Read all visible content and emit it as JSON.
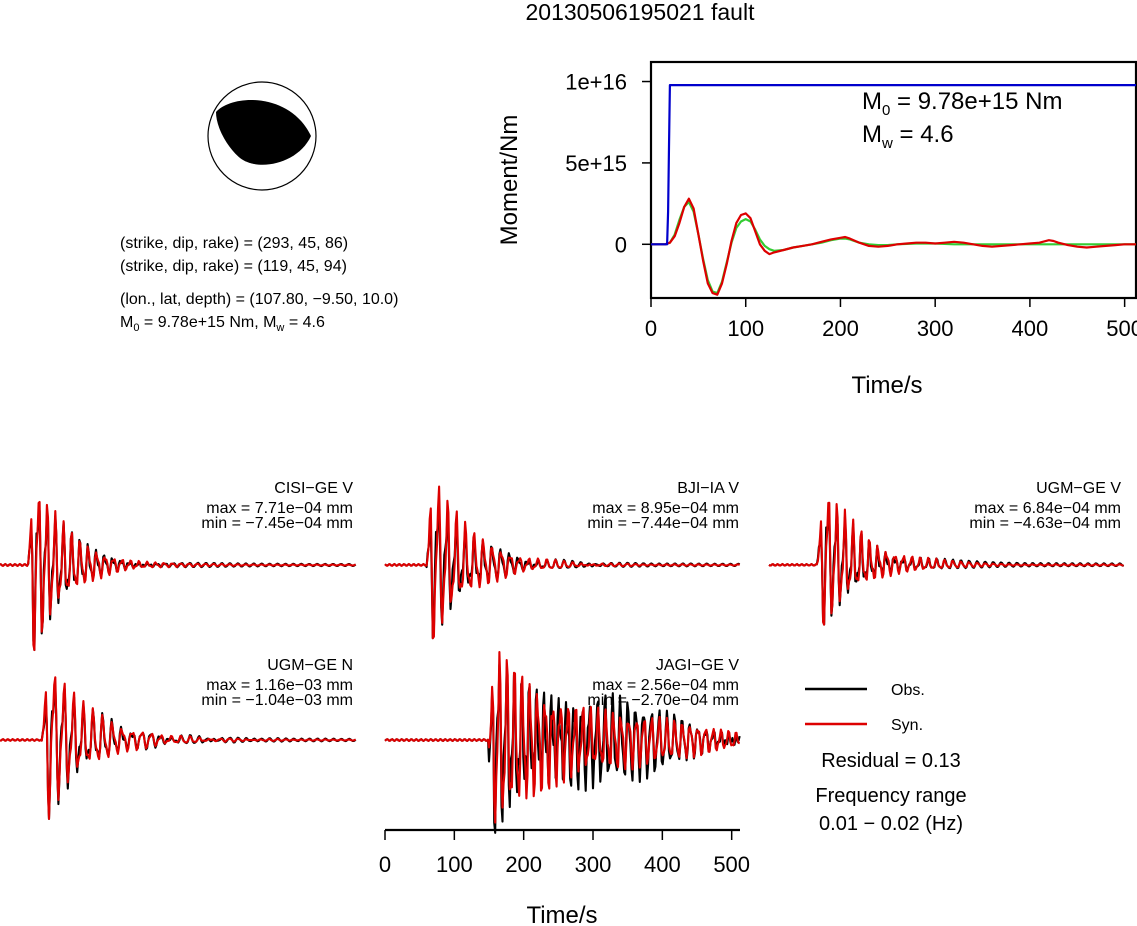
{
  "title": "20130506195021 fault",
  "mechanism": {
    "line1": "(strike, dip, rake) = (293, 45, 86)",
    "line2": "(strike, dip, rake) = (119, 45, 94)",
    "line3": "(lon., lat, depth) = (107.80, −9.50, 10.0)",
    "line4_m0": "M",
    "line4_sub": "0",
    "line4_rest": " = 9.78e+15 Nm, M",
    "line4_sub2": "w",
    "line4_tail": " = 4.6"
  },
  "colors": {
    "moment": "#0000cc",
    "obs": "#000000",
    "syn": "#dd0000",
    "stf_green": "#33cc33"
  },
  "chart_data": [
    {
      "type": "line",
      "id": "moment-rate",
      "xlabel": "Time/s",
      "ylabel": "Moment/Nm",
      "xlim": [
        0,
        512
      ],
      "ylim": [
        -3300000000000000.0,
        1.12e+16
      ],
      "xticks": [
        "0",
        "100",
        "200",
        "300",
        "400",
        "500"
      ],
      "xtick_values": [
        0,
        100,
        200,
        300,
        400,
        500
      ],
      "yticks": [
        "0",
        "5e+15",
        "1e+16"
      ],
      "ytick_values": [
        0,
        5000000000000000.0,
        1e+16
      ],
      "annotation_m0_main": "M",
      "annotation_m0_sub": "0",
      "annotation_m0_val": " = 9.78e+15 Nm",
      "annotation_mw_main": "M",
      "annotation_mw_sub": "w",
      "annotation_mw_val": " = 4.6",
      "series": [
        {
          "color": "blue",
          "x": [
            0,
            17,
            18,
            19,
            20,
            22,
            512
          ],
          "y": [
            0,
            0,
            2000000000000000.0,
            6000000000000000.0,
            9780000000000000.0,
            9780000000000000.0,
            9780000000000000.0
          ]
        },
        {
          "color": "red",
          "x": [
            0,
            15,
            20,
            25,
            30,
            35,
            40,
            45,
            50,
            55,
            60,
            65,
            70,
            75,
            80,
            85,
            90,
            95,
            100,
            105,
            110,
            115,
            120,
            125,
            130,
            140,
            150,
            160,
            170,
            180,
            190,
            200,
            205,
            210,
            220,
            230,
            240,
            250,
            260,
            270,
            280,
            290,
            300,
            310,
            320,
            330,
            340,
            350,
            360,
            370,
            380,
            390,
            400,
            410,
            420,
            425,
            430,
            440,
            450,
            460,
            470,
            480,
            490,
            500,
            512
          ],
          "y": [
            0,
            0,
            100000000000000.0,
            500000000000000.0,
            1300000000000000.0,
            2300000000000000.0,
            2800000000000000.0,
            2200000000000000.0,
            600000000000000.0,
            -1000000000000000.0,
            -2400000000000000.0,
            -3000000000000000.0,
            -3100000000000000.0,
            -2400000000000000.0,
            -1200000000000000.0,
            200000000000000.0,
            1300000000000000.0,
            1800000000000000.0,
            1900000000000000.0,
            1600000000000000.0,
            800000000000000.0,
            0,
            -400000000000000.0,
            -600000000000000.0,
            -500000000000000.0,
            -350000000000000.0,
            -200000000000000.0,
            -100000000000000.0,
            0,
            150000000000000.0,
            300000000000000.0,
            400000000000000.0,
            450000000000000.0,
            350000000000000.0,
            100000000000000.0,
            -100000000000000.0,
            -150000000000000.0,
            -100000000000000.0,
            0,
            50000000000000.0,
            100000000000000.0,
            100000000000000.0,
            50000000000000.0,
            100000000000000.0,
            150000000000000.0,
            100000000000000.0,
            0,
            -100000000000000.0,
            -150000000000000.0,
            -100000000000000.0,
            -50000000000000.0,
            0,
            50000000000000.0,
            100000000000000.0,
            250000000000000.0,
            200000000000000.0,
            100000000000000.0,
            -50000000000000.0,
            -150000000000000.0,
            -200000000000000.0,
            -150000000000000.0,
            -100000000000000.0,
            -50000000000000.0,
            0,
            0
          ]
        },
        {
          "color": "green",
          "x": [
            0,
            15,
            20,
            25,
            30,
            35,
            40,
            45,
            50,
            55,
            60,
            65,
            70,
            75,
            80,
            85,
            90,
            95,
            100,
            105,
            110,
            115,
            120,
            125,
            130,
            140,
            150,
            160,
            170,
            180,
            190,
            200,
            205,
            210,
            220,
            230,
            240,
            250,
            260,
            280,
            300,
            320,
            340,
            360,
            380,
            400,
            420,
            440,
            460,
            480,
            500,
            512
          ],
          "y": [
            0,
            0,
            100000000000000.0,
            600000000000000.0,
            1500000000000000.0,
            2300000000000000.0,
            2600000000000000.0,
            2000000000000000.0,
            600000000000000.0,
            -900000000000000.0,
            -2200000000000000.0,
            -2900000000000000.0,
            -3000000000000000.0,
            -2300000000000000.0,
            -1100000000000000.0,
            100000000000000.0,
            1000000000000000.0,
            1400000000000000.0,
            1550000000000000.0,
            1400000000000000.0,
            900000000000000.0,
            300000000000000.0,
            -100000000000000.0,
            -300000000000000.0,
            -400000000000000.0,
            -350000000000000.0,
            -200000000000000.0,
            -100000000000000.0,
            0,
            100000000000000.0,
            250000000000000.0,
            350000000000000.0,
            350000000000000.0,
            300000000000000.0,
            100000000000000.0,
            0,
            -50000000000000.0,
            -50000000000000.0,
            0,
            50000000000000.0,
            50000000000000.0,
            0,
            0,
            0,
            0,
            0,
            0,
            0,
            0,
            0,
            0,
            0
          ]
        }
      ]
    },
    {
      "type": "line",
      "id": "waveforms",
      "xlabel": "Time/s",
      "xlim": [
        0,
        512
      ],
      "xticks": [
        "0",
        "100",
        "200",
        "300",
        "400",
        "500"
      ],
      "xtick_values": [
        0,
        100,
        200,
        300,
        400,
        500
      ],
      "legend_obs": "Obs.",
      "legend_syn": "Syn.",
      "residual": "Residual = 0.13",
      "freq_label": "Frequency range",
      "freq_value": "0.01 − 0.02 (Hz)",
      "stations": [
        {
          "name": "CISI−GE V",
          "max": "max = 7.71e−04 mm",
          "min": "min = −7.45e−04 mm",
          "peak_obs": 0.000771,
          "trough_obs": -0.000745,
          "onset_s": 40,
          "period_s": 12,
          "decay_s": 50,
          "coda_amp": 0.04,
          "syn_misfit": 0.15,
          "seed": 1
        },
        {
          "name": "BJI−IA V",
          "max": "max = 8.95e−04 mm",
          "min": "min = −7.44e−04 mm",
          "peak_obs": 0.000895,
          "trough_obs": -0.000744,
          "onset_s": 60,
          "period_s": 13,
          "decay_s": 55,
          "coda_amp": 0.05,
          "syn_misfit": 0.35,
          "seed": 2
        },
        {
          "name": "UGM−GE V",
          "max": "max = 6.84e−04 mm",
          "min": "min = −4.63e−04 mm",
          "peak_obs": 0.000684,
          "trough_obs": -0.000463,
          "onset_s": 70,
          "period_s": 12,
          "decay_s": 55,
          "coda_amp": 0.06,
          "syn_misfit": 0.15,
          "seed": 3
        },
        {
          "name": "UGM−GE N",
          "max": "max = 1.16e−03 mm",
          "min": "min = −1.04e−03 mm",
          "peak_obs": 0.00116,
          "trough_obs": -0.00104,
          "onset_s": 60,
          "period_s": 14,
          "decay_s": 60,
          "coda_amp": 0.05,
          "syn_misfit": 0.15,
          "seed": 4
        },
        {
          "name": "JAGI−GE V",
          "max": "max = 2.56e−04 mm",
          "min": "min = −2.70e−04 mm",
          "peak_obs": 0.000256,
          "trough_obs": -0.00027,
          "onset_s": 150,
          "period_s": 11,
          "decay_s": 150,
          "coda_amp": 0.25,
          "syn_misfit": 0.55,
          "seed": 5
        }
      ]
    }
  ]
}
